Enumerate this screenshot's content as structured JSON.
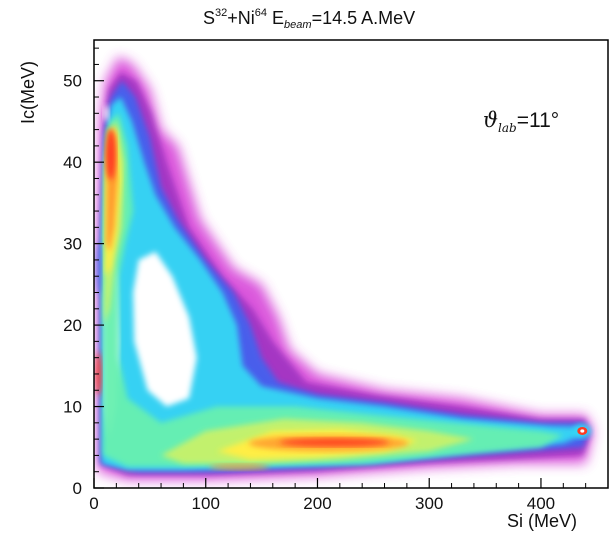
{
  "chart_data": {
    "type": "heatmap",
    "title": {
      "s_base": "S",
      "s_sup": "32",
      "plus": "+Ni",
      "ni_sup": "64",
      "e_base": " E",
      "e_sub": "beam",
      "value": "=14.5 A.MeV"
    },
    "annotation": {
      "theta": "ϑ",
      "sub": "lab",
      "value": "=11°"
    },
    "xlabel": "Si (MeV)",
    "ylabel": "Ic(MeV)",
    "xlim": [
      0,
      460
    ],
    "ylim": [
      0,
      55
    ],
    "xticks": [
      0,
      100,
      200,
      300,
      400
    ],
    "yticks": [
      0,
      10,
      20,
      30,
      40,
      50
    ],
    "colormap": [
      "#7a1fb0",
      "#d43bd6",
      "#3f63f0",
      "#35d8f4",
      "#68f0b0",
      "#c8f26a",
      "#ffee44",
      "#ff9a2e",
      "#ff3a22"
    ],
    "regions": [
      {
        "name": "heavy-fragment band",
        "x_range": [
          5,
          60
        ],
        "y_range": [
          5,
          53
        ],
        "peak": [
          15,
          45
        ]
      },
      {
        "name": "intermediate loop",
        "x_range": [
          40,
          160
        ],
        "y_range": [
          8,
          32
        ]
      },
      {
        "name": "light-particle band",
        "x_range": [
          20,
          445
        ],
        "y_range": [
          1,
          13
        ],
        "peak": [
          210,
          6
        ]
      },
      {
        "name": "elastic peak",
        "x_range": [
          430,
          445
        ],
        "y_range": [
          6,
          8
        ],
        "peak": [
          437,
          7
        ]
      }
    ]
  }
}
